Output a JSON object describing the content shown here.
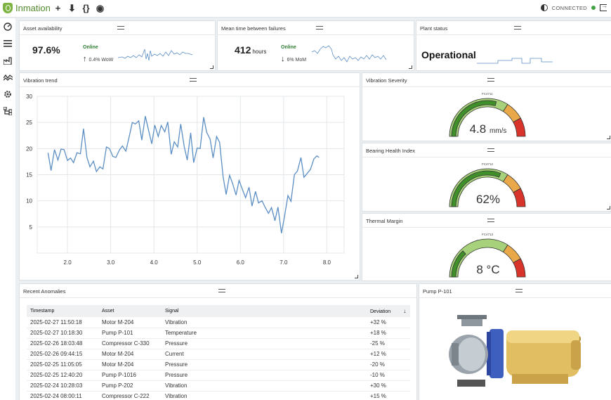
{
  "app": {
    "name": "Inmation",
    "status": "CONNECTED"
  },
  "toolbar": [
    "+",
    "⬇",
    "{}",
    "◉"
  ],
  "sidebar_icons": [
    "dashboard-icon",
    "list-icon",
    "factory-icon",
    "trend-icon",
    "settings-icon",
    "hierarchy-icon"
  ],
  "kpi": {
    "availability": {
      "title": "Asset availability",
      "value": "97.6%",
      "status": "Online",
      "trend": "0.4% WoW"
    },
    "mtbf": {
      "title": "Mean time between failures",
      "value": "412",
      "unit": "hours",
      "status": "Online",
      "trend": "6% MoM"
    },
    "plant": {
      "title": "Plant status",
      "value": "Operational"
    }
  },
  "vibration_trend": {
    "title": "Vibration trend"
  },
  "gauges": {
    "severity": {
      "title": "Vibration Severity",
      "code": "FC4711",
      "value": "4.8",
      "unit": "mm/s",
      "fraction": 0.58
    },
    "bearing": {
      "title": "Bearing Health Index",
      "code": "FC4712",
      "value": "62%",
      "unit": "",
      "fraction": 0.62
    },
    "thermal": {
      "title": "Thermal Margin",
      "code": "FC4713",
      "value": "8 °C",
      "unit": "",
      "fraction": 0.26
    }
  },
  "anomalies": {
    "title": "Recent Anomalies",
    "columns": [
      "Timestamp",
      "Asset",
      "Signal",
      "Deviation"
    ],
    "rows": [
      [
        "2025-02-27 11:50:18",
        "Motor M-204",
        "Vibration",
        "+32 %"
      ],
      [
        "2025-02-27 10:18:30",
        "Pump P-101",
        "Temperature",
        "+18 %"
      ],
      [
        "2025-02-26 18:03:48",
        "Compressor C-330",
        "Pressure",
        "-25 %"
      ],
      [
        "2025-02-26 09:44:15",
        "Motor M-204",
        "Current",
        "+12 %"
      ],
      [
        "2025-02-25 11:05:05",
        "Motor M-204",
        "Pressure",
        "-20 %"
      ],
      [
        "2025-02-25 12:40:20",
        "Pump P-1016",
        "Pressure",
        "-10 %"
      ],
      [
        "2025-02-24 10:28:03",
        "Pump P-202",
        "Vibration",
        "+30 %"
      ],
      [
        "2025-02-24 08:00:11",
        "Compressor C-222",
        "Vibration",
        "+15 %"
      ]
    ]
  },
  "pump": {
    "title": "Pump P-101"
  },
  "chart_data": {
    "type": "line",
    "title": "Vibration trend",
    "xlabel": "",
    "ylabel": "",
    "xlim": [
      1.3,
      8.4
    ],
    "ylim": [
      0,
      30
    ],
    "xticks": [
      "2.0",
      "3.0",
      "4.0",
      "5.0",
      "6.0",
      "7.0",
      "8.0"
    ],
    "yticks": [
      "5",
      "10",
      "15",
      "20",
      "25",
      "30"
    ],
    "grid": true,
    "series": [
      {
        "color": "#5b8ec4",
        "x": [
          1.55,
          1.62,
          1.7,
          1.78,
          1.85,
          1.92,
          2.0,
          2.07,
          2.14,
          2.22,
          2.3,
          2.37,
          2.45,
          2.52,
          2.6,
          2.67,
          2.75,
          2.82,
          2.9,
          2.97,
          3.05,
          3.12,
          3.2,
          3.27,
          3.35,
          3.42,
          3.5,
          3.57,
          3.65,
          3.72,
          3.8,
          3.87,
          3.95,
          4.02,
          4.1,
          4.17,
          4.25,
          4.32,
          4.4,
          4.47,
          4.55,
          4.62,
          4.7,
          4.77,
          4.85,
          4.92,
          5.0,
          5.07,
          5.15,
          5.22,
          5.3,
          5.37,
          5.45,
          5.52,
          5.6,
          5.67,
          5.75,
          5.82,
          5.9,
          5.97,
          6.05,
          6.12,
          6.2,
          6.27,
          6.35,
          6.42,
          6.5,
          6.57,
          6.65,
          6.72,
          6.8,
          6.87,
          6.95,
          7.02,
          7.1,
          7.17,
          7.25,
          7.32,
          7.4,
          7.47,
          7.55,
          7.62,
          7.7,
          7.77,
          7.82
        ],
        "y": [
          19.2,
          15.8,
          19.8,
          17.8,
          19.9,
          19.8,
          17.7,
          18.2,
          17.3,
          19.2,
          19.0,
          23.8,
          18.3,
          16.5,
          17.6,
          15.6,
          16.5,
          16.1,
          20.3,
          20.0,
          18.5,
          18.3,
          19.7,
          20.5,
          19.5,
          22.0,
          25.0,
          24.7,
          25.3,
          21.6,
          26.2,
          23.7,
          20.9,
          24.5,
          22.3,
          24.4,
          23.2,
          25.1,
          18.9,
          21.3,
          20.3,
          24.7,
          20.4,
          17.8,
          23.0,
          17.3,
          20.1,
          20.0,
          26.0,
          23.1,
          21.8,
          18.2,
          22.3,
          21.2,
          14.6,
          11.2,
          14.9,
          13.3,
          11.1,
          13.9,
          12.1,
          10.6,
          12.6,
          9.0,
          11.8,
          9.6,
          10.0,
          8.8,
          7.6,
          8.7,
          6.2,
          8.8,
          3.8,
          7.0,
          11.0,
          9.9,
          15.0,
          15.7,
          18.3,
          14.5,
          15.3,
          16.0,
          18.0,
          18.6,
          18.3
        ]
      }
    ]
  }
}
